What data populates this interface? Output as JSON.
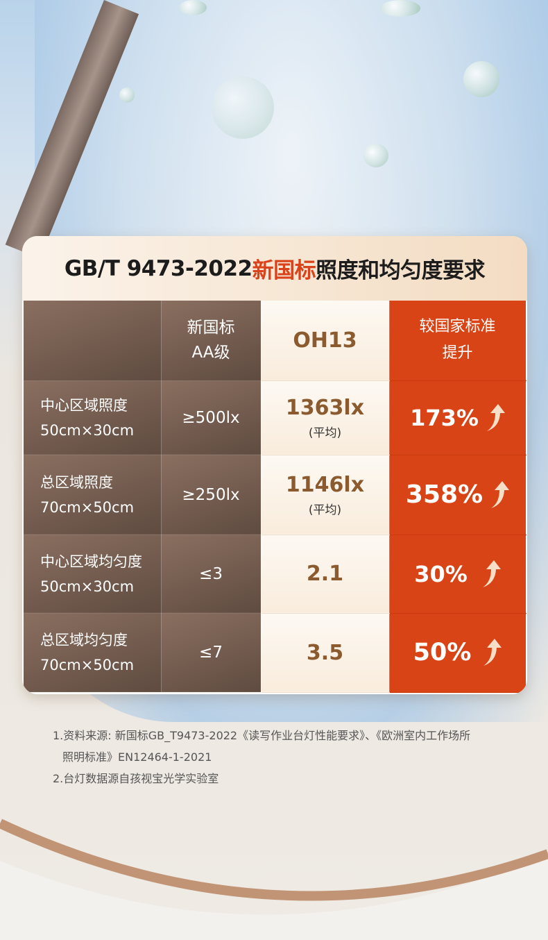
{
  "title": {
    "prefix": "GB/T 9473-2022",
    "highlight": "新国标",
    "suffix": "照度和均匀度要求"
  },
  "table": {
    "headers": {
      "standard": [
        "新国标",
        "AA级"
      ],
      "product": "OH13",
      "improvement": [
        "较国家标准",
        "提升"
      ]
    },
    "rows": [
      {
        "metric": "中心区域照度",
        "area": "50cm×30cm",
        "standard": "≥500lx",
        "value": "1363lx",
        "note": "(平均)",
        "improvement": "173%"
      },
      {
        "metric": "总区域照度",
        "area": "70cm×50cm",
        "standard": "≥250lx",
        "value": "1146lx",
        "note": "(平均)",
        "improvement": "358%"
      },
      {
        "metric": "中心区域均匀度",
        "area": "50cm×30cm",
        "standard": "≤3",
        "value": "2.1",
        "note": null,
        "improvement": "30%"
      },
      {
        "metric": "总区域均匀度",
        "area": "70cm×50cm",
        "standard": "≤7",
        "value": "3.5",
        "note": null,
        "improvement": "50%"
      }
    ]
  },
  "notes": {
    "line1": "1.资料来源: 新国标GB_T9473-2022《读写作业台灯性能要求》、《欧洲室内工作场所",
    "line1b": "照明标准》EN12464-1-2021",
    "line2": "2.台灯数据源自孩视宝光学实验室"
  },
  "colors": {
    "accent": "#d94416",
    "brown": "#8b5a2e",
    "dark_col": "#6e584b"
  }
}
